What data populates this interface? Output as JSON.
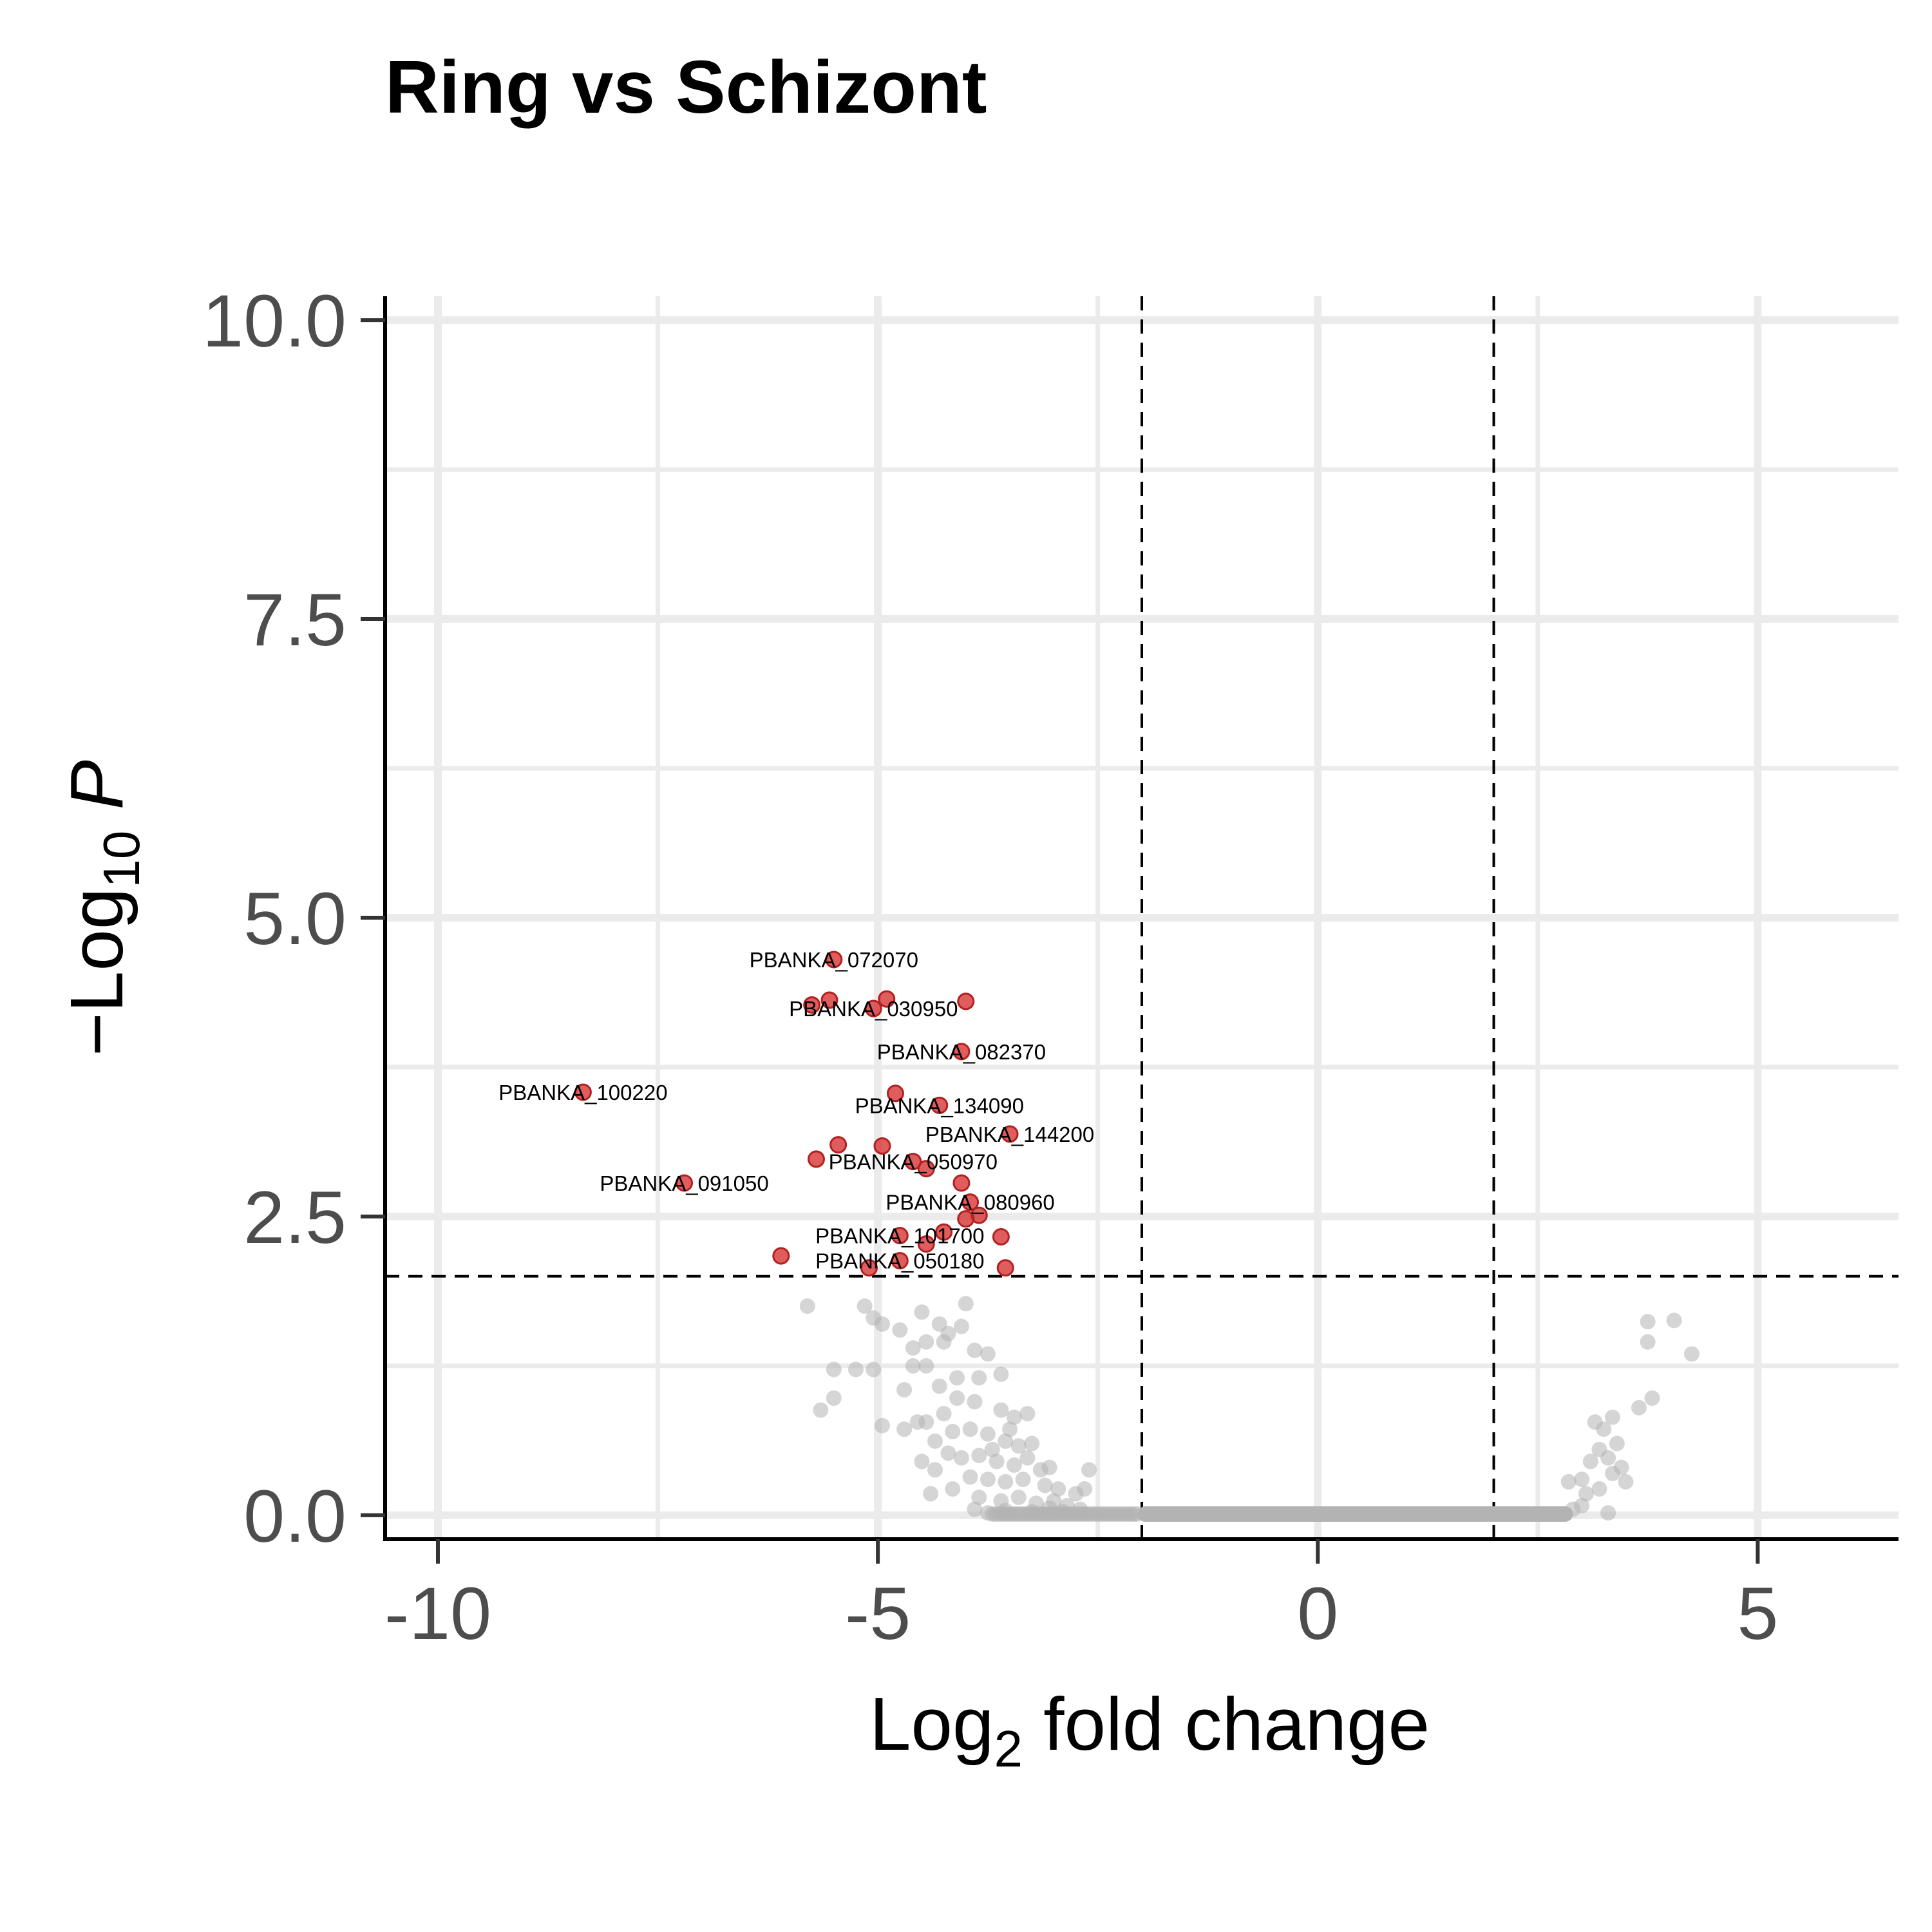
{
  "chart_data": {
    "type": "scatter",
    "title": "Ring vs Schizont",
    "xlabel": {
      "main": "Log",
      "sub": "2",
      "rest": " fold change"
    },
    "ylabel": {
      "prefix": "−Log",
      "sub": "10",
      "var": "P"
    },
    "xlim": [
      -10.6,
      6.6
    ],
    "ylim": [
      -0.2,
      10.2
    ],
    "x_ticks": [
      -10,
      -5,
      0,
      5
    ],
    "x_tick_labels": [
      "-10",
      "-5",
      "0",
      "5"
    ],
    "y_ticks": [
      0,
      2.5,
      5,
      7.5,
      10
    ],
    "y_tick_labels": [
      "0.0",
      "2.5",
      "5.0",
      "7.5",
      "10.0"
    ],
    "grid": true,
    "legend": "none",
    "thresholds": {
      "fc": [
        -2,
        2
      ],
      "p": 2
    },
    "colors": {
      "significant": "#d62728",
      "nonsignificant": "#b3b3b3",
      "grid": "#ebebeb",
      "axis": "#000000"
    },
    "significant": [
      {
        "x": -5.5,
        "y": 4.65
      },
      {
        "x": -5.75,
        "y": 4.27
      },
      {
        "x": -5.55,
        "y": 4.31
      },
      {
        "x": -5.05,
        "y": 4.24
      },
      {
        "x": -4.9,
        "y": 4.32
      },
      {
        "x": -4.0,
        "y": 4.3
      },
      {
        "x": -4.05,
        "y": 3.88
      },
      {
        "x": -8.35,
        "y": 3.54
      },
      {
        "x": -4.8,
        "y": 3.53
      },
      {
        "x": -4.3,
        "y": 3.43
      },
      {
        "x": -3.5,
        "y": 3.19
      },
      {
        "x": -5.45,
        "y": 3.1
      },
      {
        "x": -4.95,
        "y": 3.09
      },
      {
        "x": -5.7,
        "y": 2.98
      },
      {
        "x": -4.6,
        "y": 2.96
      },
      {
        "x": -4.45,
        "y": 2.9
      },
      {
        "x": -7.2,
        "y": 2.78
      },
      {
        "x": -4.05,
        "y": 2.78
      },
      {
        "x": -3.95,
        "y": 2.62
      },
      {
        "x": -3.85,
        "y": 2.51
      },
      {
        "x": -4.0,
        "y": 2.48
      },
      {
        "x": -4.75,
        "y": 2.34
      },
      {
        "x": -4.25,
        "y": 2.37
      },
      {
        "x": -3.6,
        "y": 2.33
      },
      {
        "x": -4.45,
        "y": 2.27
      },
      {
        "x": -6.1,
        "y": 2.17
      },
      {
        "x": -4.75,
        "y": 2.13
      },
      {
        "x": -5.1,
        "y": 2.07
      },
      {
        "x": -3.55,
        "y": 2.07
      }
    ],
    "labels": [
      {
        "text": "PBANKA_072070",
        "x": -5.5,
        "y": 4.65
      },
      {
        "text": "PBANKA_030950",
        "x": -5.05,
        "y": 4.24
      },
      {
        "text": "PBANKA_082370",
        "x": -4.05,
        "y": 3.88
      },
      {
        "text": "PBANKA_100220",
        "x": -8.35,
        "y": 3.54
      },
      {
        "text": "PBANKA_134090",
        "x": -4.3,
        "y": 3.43
      },
      {
        "text": "PBANKA_144200",
        "x": -3.5,
        "y": 3.19
      },
      {
        "text": "PBANKA_050970",
        "x": -4.6,
        "y": 2.96
      },
      {
        "text": "PBANKA_091050",
        "x": -7.2,
        "y": 2.78
      },
      {
        "text": "PBANKA_080960",
        "x": -3.95,
        "y": 2.62
      },
      {
        "text": "PBANKA_101700",
        "x": -4.75,
        "y": 2.34
      },
      {
        "text": "PBANKA_050180",
        "x": -4.75,
        "y": 2.13
      }
    ],
    "nonsignificant": [
      {
        "x": -5.8,
        "y": 1.75
      },
      {
        "x": -5.15,
        "y": 1.75
      },
      {
        "x": -4.0,
        "y": 1.77
      },
      {
        "x": -4.95,
        "y": 1.6
      },
      {
        "x": -4.75,
        "y": 1.55
      },
      {
        "x": -4.5,
        "y": 1.7
      },
      {
        "x": -4.3,
        "y": 1.6
      },
      {
        "x": -4.2,
        "y": 1.52
      },
      {
        "x": -4.05,
        "y": 1.58
      },
      {
        "x": -4.45,
        "y": 1.45
      },
      {
        "x": -3.9,
        "y": 1.38
      },
      {
        "x": -3.75,
        "y": 1.35
      },
      {
        "x": -4.6,
        "y": 1.4
      },
      {
        "x": -4.25,
        "y": 1.45
      },
      {
        "x": -5.05,
        "y": 1.65
      },
      {
        "x": -5.5,
        "y": 1.22
      },
      {
        "x": -5.25,
        "y": 1.22
      },
      {
        "x": -5.05,
        "y": 1.22
      },
      {
        "x": -4.6,
        "y": 1.25
      },
      {
        "x": -4.45,
        "y": 1.25
      },
      {
        "x": -4.1,
        "y": 1.15
      },
      {
        "x": -4.3,
        "y": 1.08
      },
      {
        "x": -3.6,
        "y": 1.18
      },
      {
        "x": -3.85,
        "y": 1.15
      },
      {
        "x": -5.65,
        "y": 0.88
      },
      {
        "x": -5.5,
        "y": 0.98
      },
      {
        "x": -4.7,
        "y": 1.05
      },
      {
        "x": -4.1,
        "y": 0.98
      },
      {
        "x": -4.25,
        "y": 0.85
      },
      {
        "x": -3.9,
        "y": 0.95
      },
      {
        "x": -3.6,
        "y": 0.88
      },
      {
        "x": -3.45,
        "y": 0.82
      },
      {
        "x": -3.3,
        "y": 0.85
      },
      {
        "x": -4.95,
        "y": 0.75
      },
      {
        "x": -4.55,
        "y": 0.78
      },
      {
        "x": -4.45,
        "y": 0.78
      },
      {
        "x": -4.15,
        "y": 0.7
      },
      {
        "x": -3.95,
        "y": 0.72
      },
      {
        "x": -3.75,
        "y": 0.68
      },
      {
        "x": -3.55,
        "y": 0.62
      },
      {
        "x": -3.4,
        "y": 0.58
      },
      {
        "x": -4.35,
        "y": 0.62
      },
      {
        "x": -4.7,
        "y": 0.72
      },
      {
        "x": -4.2,
        "y": 0.52
      },
      {
        "x": -4.05,
        "y": 0.48
      },
      {
        "x": -3.85,
        "y": 0.5
      },
      {
        "x": -3.65,
        "y": 0.45
      },
      {
        "x": -3.45,
        "y": 0.42
      },
      {
        "x": -3.3,
        "y": 0.48
      },
      {
        "x": -3.15,
        "y": 0.38
      },
      {
        "x": -4.5,
        "y": 0.45
      },
      {
        "x": -4.35,
        "y": 0.38
      },
      {
        "x": -3.95,
        "y": 0.32
      },
      {
        "x": -3.75,
        "y": 0.3
      },
      {
        "x": -3.55,
        "y": 0.28
      },
      {
        "x": -3.35,
        "y": 0.3
      },
      {
        "x": -3.1,
        "y": 0.25
      },
      {
        "x": -2.95,
        "y": 0.22
      },
      {
        "x": -2.75,
        "y": 0.18
      },
      {
        "x": -4.4,
        "y": 0.18
      },
      {
        "x": -4.15,
        "y": 0.22
      },
      {
        "x": -3.85,
        "y": 0.15
      },
      {
        "x": -3.6,
        "y": 0.12
      },
      {
        "x": -3.4,
        "y": 0.15
      },
      {
        "x": -3.2,
        "y": 0.1
      },
      {
        "x": -3.0,
        "y": 0.12
      },
      {
        "x": -2.85,
        "y": 0.08
      },
      {
        "x": -2.7,
        "y": 0.05
      },
      {
        "x": -3.9,
        "y": 0.05
      },
      {
        "x": -3.75,
        "y": 0.02
      },
      {
        "x": -3.55,
        "y": 0.04
      },
      {
        "x": -3.25,
        "y": 0.03
      },
      {
        "x": -3.05,
        "y": 0.06
      },
      {
        "x": -2.9,
        "y": 0.03
      },
      {
        "x": -3.7,
        "y": 0.55
      },
      {
        "x": -3.5,
        "y": 0.72
      },
      {
        "x": -3.25,
        "y": 0.6
      },
      {
        "x": -3.05,
        "y": 0.4
      },
      {
        "x": -2.6,
        "y": 0.38
      },
      {
        "x": -2.65,
        "y": 0.22
      },
      {
        "x": 2.85,
        "y": 0.28
      },
      {
        "x": 3.0,
        "y": 0.3
      },
      {
        "x": 3.1,
        "y": 0.45
      },
      {
        "x": 3.2,
        "y": 0.55
      },
      {
        "x": 3.3,
        "y": 0.48
      },
      {
        "x": 3.35,
        "y": 0.35
      },
      {
        "x": 3.45,
        "y": 0.4
      },
      {
        "x": 3.4,
        "y": 0.6
      },
      {
        "x": 3.25,
        "y": 0.72
      },
      {
        "x": 3.05,
        "y": 0.18
      },
      {
        "x": 3.2,
        "y": 0.22
      },
      {
        "x": 3.5,
        "y": 0.28
      },
      {
        "x": 3.3,
        "y": 0.02
      },
      {
        "x": 3.15,
        "y": 0.78
      },
      {
        "x": 3.35,
        "y": 0.82
      },
      {
        "x": 3.65,
        "y": 0.9
      },
      {
        "x": 3.8,
        "y": 0.98
      },
      {
        "x": 3.75,
        "y": 1.62
      },
      {
        "x": 4.05,
        "y": 1.63
      },
      {
        "x": 3.75,
        "y": 1.45
      },
      {
        "x": 4.25,
        "y": 1.35
      },
      {
        "x": 2.9,
        "y": 0.05
      },
      {
        "x": 3.0,
        "y": 0.08
      }
    ]
  }
}
